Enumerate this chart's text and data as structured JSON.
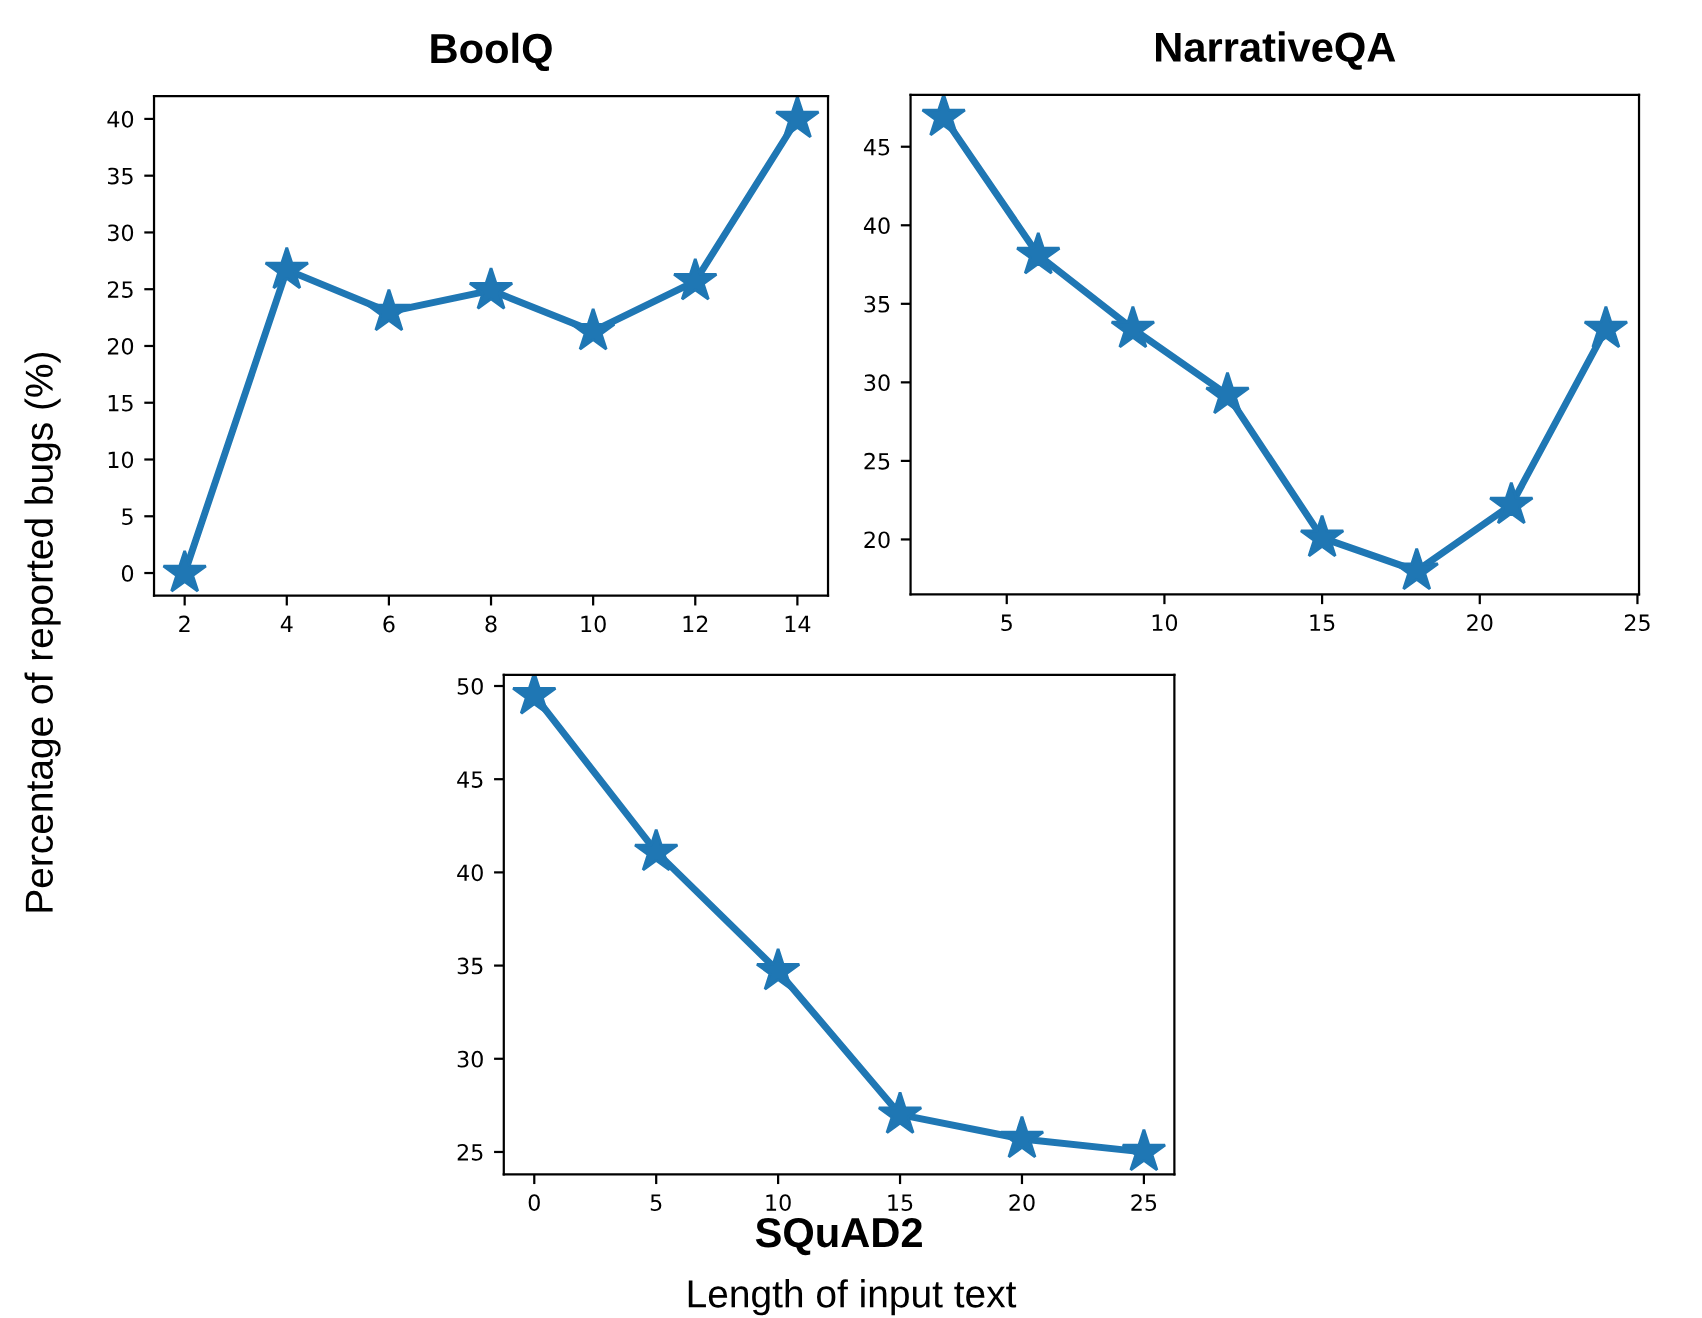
{
  "chart_data": [
    {
      "type": "line",
      "title": "BoolQ",
      "ylabel": "Percentage of reported bugs (%)",
      "marker": "star",
      "line_style": "solid",
      "grid": false,
      "x": [
        2,
        4,
        6,
        8,
        10,
        12,
        14
      ],
      "xlim": [
        1.4,
        14.6
      ],
      "xticks": [
        2,
        4,
        6,
        8,
        10,
        12,
        14
      ],
      "ylim": [
        -2,
        42
      ],
      "yticks": [
        0,
        5,
        10,
        15,
        20,
        25,
        30,
        35,
        40
      ],
      "series": [
        {
          "color": "#1f77b4",
          "values": [
            0,
            26.7,
            23.0,
            24.9,
            21.3,
            25.7,
            40.0
          ]
        }
      ]
    },
    {
      "type": "line",
      "title": "NarrativeQA",
      "marker": "star",
      "line_style": "solid",
      "grid": false,
      "x": [
        3,
        6,
        9,
        12,
        15,
        18,
        21,
        24
      ],
      "xlim": [
        1.95,
        25.05
      ],
      "xticks": [
        5,
        10,
        15,
        20,
        25
      ],
      "ylim": [
        16.5,
        48.3
      ],
      "yticks": [
        20,
        25,
        30,
        35,
        40,
        45
      ],
      "series": [
        {
          "color": "#1f77b4",
          "values": [
            46.9,
            38.1,
            33.4,
            29.2,
            20.1,
            18.0,
            22.2,
            33.4
          ]
        }
      ]
    },
    {
      "type": "line",
      "title": "SQuAD2",
      "xlabel": "Length of input text",
      "marker": "star",
      "line_style": "solid",
      "grid": false,
      "x": [
        0,
        5,
        10,
        15,
        20,
        25
      ],
      "xlim": [
        -1.25,
        26.25
      ],
      "xticks": [
        0,
        5,
        10,
        15,
        20,
        25
      ],
      "ylim": [
        23.8,
        50.6
      ],
      "yticks": [
        25,
        30,
        35,
        40,
        45,
        50
      ],
      "series": [
        {
          "color": "#1f77b4",
          "values": [
            49.5,
            41.1,
            34.7,
            27.0,
            25.7,
            25.0
          ]
        }
      ]
    }
  ]
}
